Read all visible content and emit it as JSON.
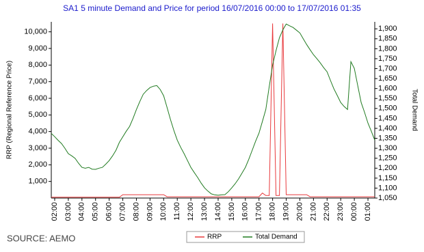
{
  "chart_data": {
    "type": "line",
    "title": "SA1 5 minute Demand and Price for period 16/07/2016 00:00 to 17/07/2016 01:35",
    "y_label": "RRP (Regional Reference Price)",
    "y2_label": "Total Demand",
    "source": "SOURCE: AEMO",
    "categories": [
      null,
      "02:00",
      null,
      null,
      null,
      "03:00",
      null,
      null,
      null,
      "04:00",
      null,
      null,
      null,
      "05:00",
      null,
      null,
      null,
      "06:00",
      null,
      null,
      null,
      "07:00",
      null,
      null,
      null,
      "08:00",
      null,
      null,
      null,
      "09:00",
      null,
      null,
      null,
      "10:00",
      null,
      null,
      null,
      "11:00",
      null,
      null,
      null,
      "12:00",
      null,
      null,
      null,
      "13:00",
      null,
      null,
      null,
      "14:00",
      null,
      null,
      null,
      "15:00",
      null,
      null,
      null,
      "16:00",
      null,
      null,
      null,
      "17:00",
      null,
      null,
      null,
      "18:00",
      null,
      null,
      null,
      "19:00",
      null,
      null,
      null,
      "20:00",
      null,
      null,
      null,
      "21:00",
      null,
      null,
      null,
      "22:00",
      null,
      null,
      null,
      "23:00",
      null,
      null,
      null,
      "00:00",
      null,
      null,
      null,
      "01:00",
      null,
      null
    ],
    "series": [
      {
        "name": "RRP",
        "color": "#e8383b",
        "axis": "y",
        "values": [
          50,
          50,
          50,
          50,
          50,
          50,
          50,
          50,
          50,
          50,
          50,
          50,
          50,
          50,
          50,
          50,
          50,
          50,
          50,
          50,
          50,
          200,
          200,
          200,
          200,
          200,
          200,
          200,
          200,
          200,
          200,
          200,
          200,
          200,
          80,
          80,
          80,
          80,
          80,
          80,
          80,
          80,
          80,
          80,
          80,
          80,
          80,
          80,
          80,
          80,
          80,
          80,
          80,
          80,
          80,
          80,
          80,
          80,
          80,
          80,
          80,
          80,
          300,
          150,
          150,
          10500,
          150,
          150,
          10500,
          200,
          200,
          200,
          200,
          200,
          200,
          200,
          80,
          80,
          80,
          80,
          80,
          80,
          80,
          80,
          80,
          80,
          80,
          80,
          80,
          80,
          80,
          80,
          80,
          80,
          80,
          80
        ]
      },
      {
        "name": "Total Demand",
        "color": "#1f7a1f",
        "axis": "y2",
        "values": [
          1375,
          1358,
          1340,
          1324,
          1300,
          1273,
          1262,
          1249,
          1225,
          1204,
          1200,
          1204,
          1195,
          1194,
          1200,
          1204,
          1220,
          1238,
          1262,
          1290,
          1330,
          1358,
          1385,
          1410,
          1450,
          1495,
          1535,
          1571,
          1590,
          1605,
          1612,
          1615,
          1595,
          1564,
          1505,
          1444,
          1390,
          1341,
          1305,
          1273,
          1238,
          1204,
          1178,
          1153,
          1125,
          1101,
          1085,
          1071,
          1066,
          1064,
          1066,
          1067,
          1082,
          1101,
          1122,
          1146,
          1175,
          1204,
          1245,
          1290,
          1335,
          1376,
          1435,
          1495,
          1610,
          1718,
          1790,
          1855,
          1895,
          1924,
          1915,
          1907,
          1893,
          1879,
          1850,
          1821,
          1795,
          1770,
          1750,
          1729,
          1705,
          1684,
          1640,
          1598,
          1565,
          1530,
          1510,
          1495,
          1735,
          1701,
          1615,
          1530,
          1480,
          1427,
          1385,
          1341
        ]
      }
    ],
    "ylim": [
      0,
      10600
    ],
    "yticks": [
      {
        "value": 1000,
        "label": "1,000"
      },
      {
        "value": 2000,
        "label": "2,000"
      },
      {
        "value": 3000,
        "label": "3,000"
      },
      {
        "value": 4000,
        "label": "4,000"
      },
      {
        "value": 5000,
        "label": "5,000"
      },
      {
        "value": 6000,
        "label": "6,000"
      },
      {
        "value": 7000,
        "label": "7,000"
      },
      {
        "value": 8000,
        "label": "8,000"
      },
      {
        "value": 9000,
        "label": "9,000"
      },
      {
        "value": 10000,
        "label": "10,000"
      }
    ],
    "y2lim": [
      1050,
      1935
    ],
    "y2ticks": [
      {
        "value": 1050,
        "label": "1,050"
      },
      {
        "value": 1100,
        "label": "1,100"
      },
      {
        "value": 1150,
        "label": "1,150"
      },
      {
        "value": 1200,
        "label": "1,200"
      },
      {
        "value": 1250,
        "label": "1,250"
      },
      {
        "value": 1300,
        "label": "1,300"
      },
      {
        "value": 1350,
        "label": "1,350"
      },
      {
        "value": 1400,
        "label": "1,400"
      },
      {
        "value": 1450,
        "label": "1,450"
      },
      {
        "value": 1500,
        "label": "1,500"
      },
      {
        "value": 1550,
        "label": "1,550"
      },
      {
        "value": 1600,
        "label": "1,600"
      },
      {
        "value": 1650,
        "label": "1,650"
      },
      {
        "value": 1700,
        "label": "1,700"
      },
      {
        "value": 1750,
        "label": "1,750"
      },
      {
        "value": 1800,
        "label": "1,800"
      },
      {
        "value": 1850,
        "label": "1,850"
      },
      {
        "value": 1900,
        "label": "1,900"
      }
    ],
    "grid": false
  }
}
